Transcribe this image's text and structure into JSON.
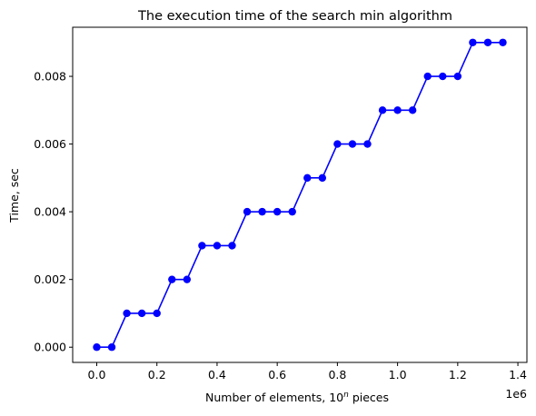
{
  "chart_data": {
    "type": "line",
    "title": "The execution time of the search min algorithm",
    "xlabel_prefix": "Number of elements, 10",
    "xlabel_sup": "n",
    "xlabel_suffix": " pieces",
    "ylabel": "Time, sec",
    "x_offset_label": "1e6",
    "xlim": [
      -80000,
      1430000
    ],
    "ylim": [
      -0.00045,
      0.00945
    ],
    "x_ticks": [
      0,
      200000,
      400000,
      600000,
      800000,
      1000000,
      1200000,
      1400000
    ],
    "x_tick_labels": [
      "0.0",
      "0.2",
      "0.4",
      "0.6",
      "0.8",
      "1.0",
      "1.2",
      "1.4"
    ],
    "y_ticks": [
      0,
      0.002,
      0.004,
      0.006,
      0.008
    ],
    "y_tick_labels": [
      "0.000",
      "0.002",
      "0.004",
      "0.006",
      "0.008"
    ],
    "grid": false,
    "legend": "none",
    "series": [
      {
        "color": "#0000ff",
        "marker": "circle",
        "x": [
          0,
          50000,
          100000,
          150000,
          200000,
          250000,
          300000,
          350000,
          400000,
          450000,
          500000,
          550000,
          600000,
          650000,
          700000,
          750000,
          800000,
          850000,
          900000,
          950000,
          1000000,
          1050000,
          1100000,
          1150000,
          1200000,
          1250000,
          1300000,
          1350000
        ],
        "y": [
          0,
          0,
          0.001,
          0.001,
          0.001,
          0.002,
          0.002,
          0.003,
          0.003,
          0.003,
          0.004,
          0.004,
          0.004,
          0.004,
          0.005,
          0.005,
          0.006,
          0.006,
          0.006,
          0.007,
          0.007,
          0.007,
          0.008,
          0.008,
          0.008,
          0.009,
          0.009,
          0.009
        ]
      }
    ]
  }
}
